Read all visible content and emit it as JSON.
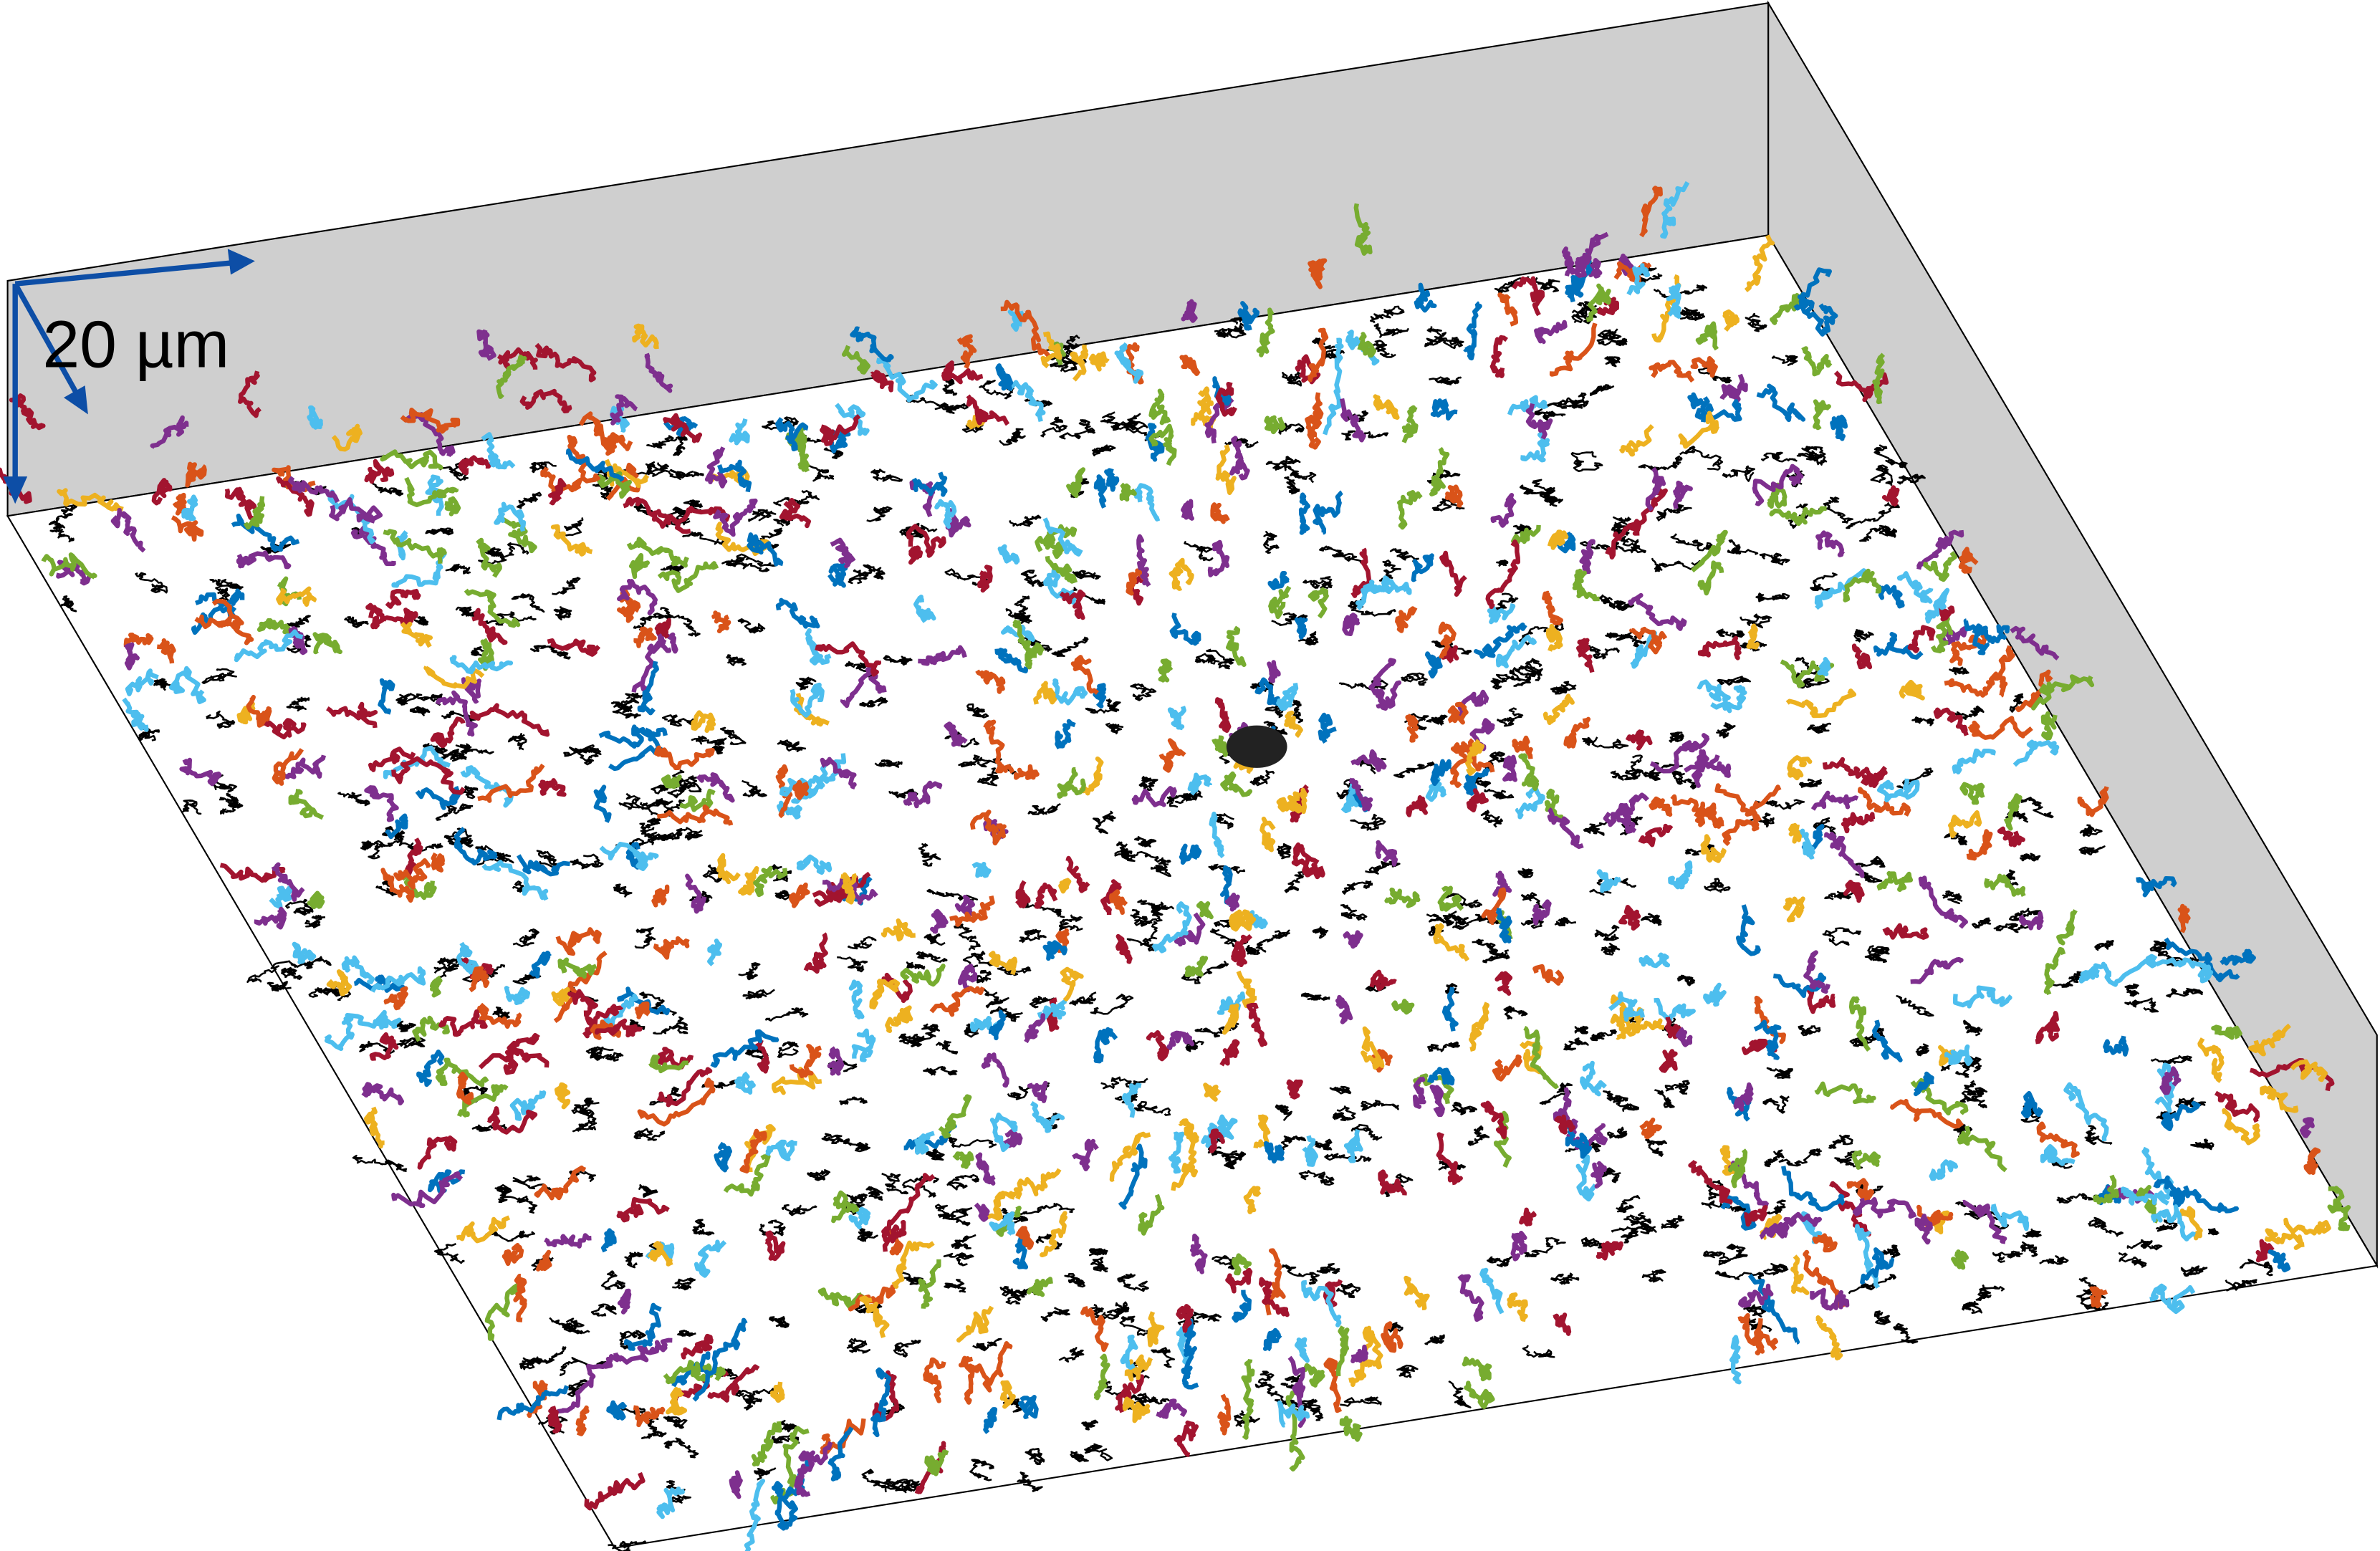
{
  "scale_bar": {
    "label": "20 µm"
  }
}
